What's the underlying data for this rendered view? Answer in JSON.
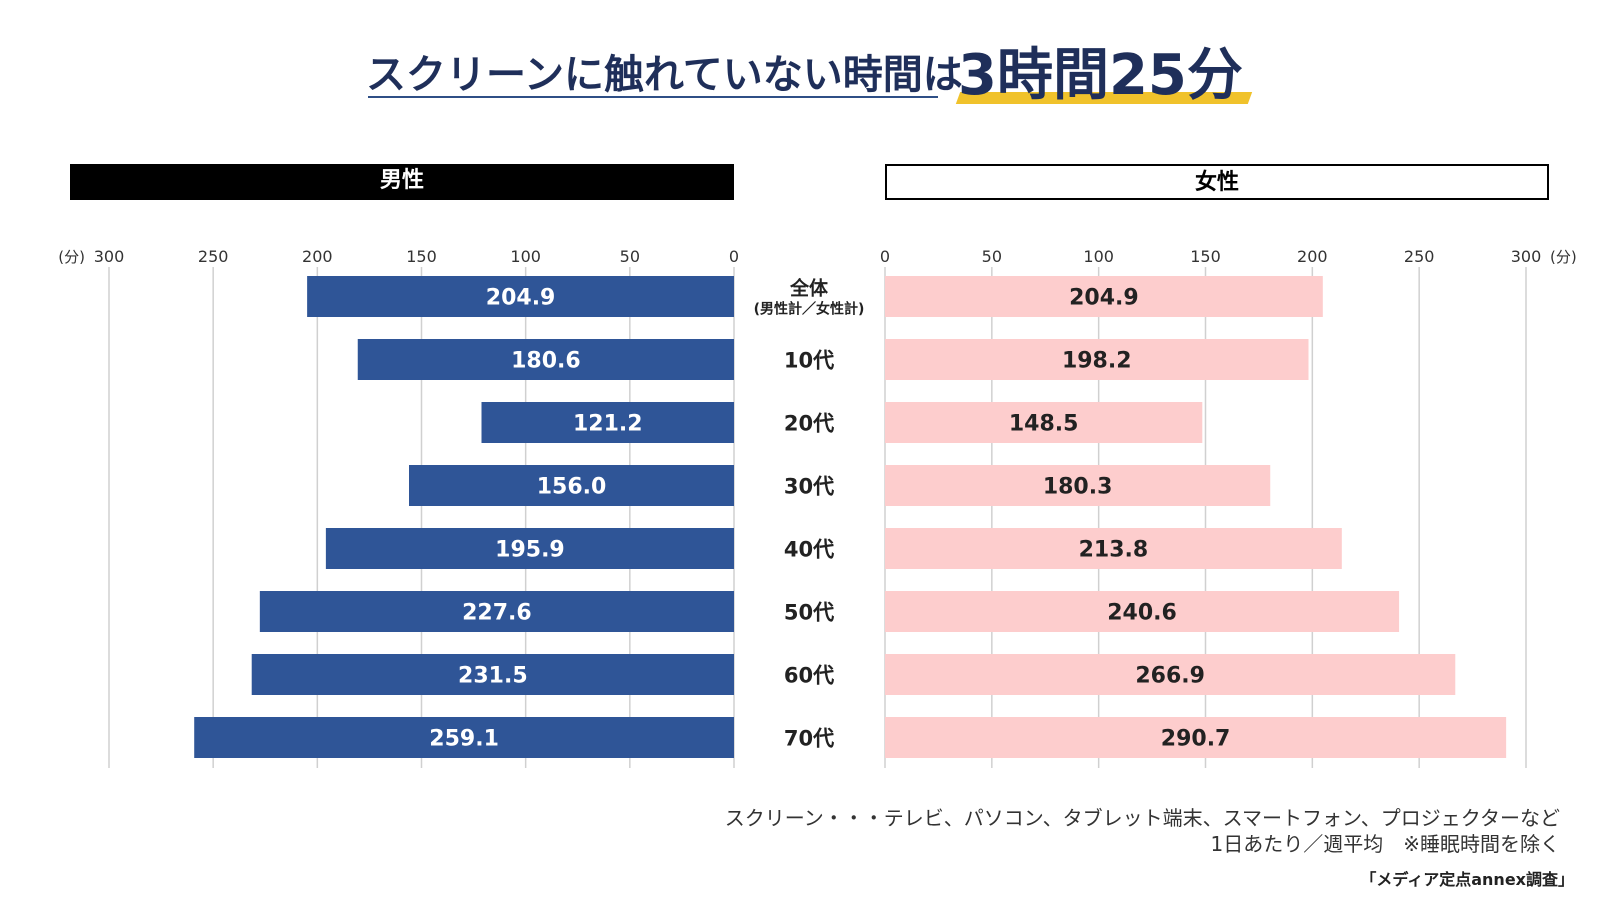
{
  "title": {
    "main": "スクリーンに触れていない時間は",
    "accent": "3時間25分"
  },
  "panels": {
    "male": "男性",
    "female": "女性"
  },
  "notes": {
    "line1": "スクリーン・・・テレビ、パソコン、タブレット端末、スマートフォン、プロジェクターなど",
    "line2": "1日あたり／週平均　※睡眠時間を除く"
  },
  "source": "「メディア定点annex調査」",
  "colors": {
    "male_bar": "#2f5597",
    "female_bar": "#fdcdcd",
    "male_label": "#ffffff",
    "female_label": "#222222",
    "grid": "#d0d0d0",
    "title_accent_underline": "#f0c22b"
  },
  "chart_data": {
    "type": "bar",
    "orientation": "horizontal",
    "categories": [
      "全体",
      "10代",
      "20代",
      "30代",
      "40代",
      "50代",
      "60代",
      "70代"
    ],
    "category_sublabels": [
      "(男性計／女性計)",
      "",
      "",
      "",
      "",
      "",
      "",
      ""
    ],
    "series": [
      {
        "name": "男性",
        "values": [
          204.9,
          180.6,
          121.2,
          156.0,
          195.9,
          227.6,
          231.5,
          259.1
        ]
      },
      {
        "name": "女性",
        "values": [
          204.9,
          198.2,
          148.5,
          180.3,
          213.8,
          240.6,
          266.9,
          290.7
        ]
      }
    ],
    "value_labels": {
      "男性": [
        "204.9",
        "180.6",
        "121.2",
        "156.0",
        "195.9",
        "227.6",
        "231.5",
        "259.1"
      ],
      "女性": [
        "204.9",
        "198.2",
        "148.5",
        "180.3",
        "213.8",
        "240.6",
        "266.9",
        "290.7"
      ]
    },
    "xlim": [
      0,
      300
    ],
    "ticks": [
      0,
      50,
      100,
      150,
      200,
      250,
      300
    ],
    "unit": "(分)",
    "grid": true,
    "layout": "butterfly"
  }
}
